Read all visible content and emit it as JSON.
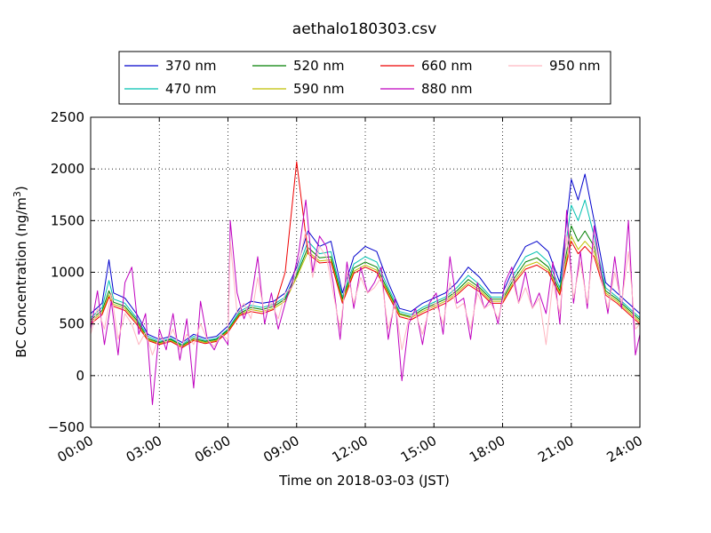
{
  "chart_data": {
    "type": "line",
    "title": "aethalo180303.csv",
    "xlabel": "Time on 2018-03-03 (JST)",
    "ylabel_main": "BC Concentration (ng/m",
    "ylabel_sup": "3",
    "ylabel_tail": ")",
    "x_ticks": [
      "00:00",
      "03:00",
      "06:00",
      "09:00",
      "12:00",
      "15:00",
      "18:00",
      "21:00",
      "24:00"
    ],
    "xlim_hours": [
      0,
      24
    ],
    "y_ticks": [
      "2500",
      "2000",
      "1500",
      "1000",
      "500",
      "0",
      "−500"
    ],
    "ylim": [
      -500,
      2500
    ],
    "grid": true,
    "legend_position": "top-center",
    "series": [
      {
        "name": "370 nm",
        "color": "#0000cc",
        "x": [
          0,
          0.5,
          0.8,
          1,
          1.5,
          2,
          2.5,
          3,
          3.5,
          4,
          4.5,
          5,
          5.5,
          6,
          6.5,
          7,
          7.5,
          8,
          8.5,
          9,
          9.5,
          10,
          10.5,
          11,
          11.5,
          12,
          12.5,
          13,
          13.5,
          14,
          14.5,
          15,
          15.5,
          16,
          16.5,
          17,
          17.5,
          18,
          18.5,
          19,
          19.5,
          20,
          20.5,
          21,
          21.3,
          21.6,
          22,
          22.5,
          23,
          23.5,
          24
        ],
        "y": [
          600,
          700,
          1120,
          800,
          750,
          600,
          400,
          350,
          380,
          320,
          400,
          360,
          380,
          480,
          650,
          720,
          700,
          720,
          800,
          1050,
          1400,
          1250,
          1300,
          800,
          1150,
          1250,
          1200,
          900,
          650,
          620,
          700,
          750,
          800,
          900,
          1050,
          950,
          800,
          800,
          1050,
          1250,
          1300,
          1200,
          900,
          1900,
          1700,
          1950,
          1500,
          900,
          800,
          700,
          600
        ]
      },
      {
        "name": "470 nm",
        "color": "#00c0b0",
        "x": [
          0,
          0.5,
          0.8,
          1,
          1.5,
          2,
          2.5,
          3,
          3.5,
          4,
          4.5,
          5,
          5.5,
          6,
          6.5,
          7,
          7.5,
          8,
          8.5,
          9,
          9.5,
          10,
          10.5,
          11,
          11.5,
          12,
          12.5,
          13,
          13.5,
          14,
          14.5,
          15,
          15.5,
          16,
          16.5,
          17,
          17.5,
          18,
          18.5,
          19,
          19.5,
          20,
          20.5,
          21,
          21.3,
          21.6,
          22,
          22.5,
          23,
          23.5,
          24
        ],
        "y": [
          560,
          660,
          920,
          740,
          700,
          560,
          380,
          330,
          360,
          300,
          380,
          340,
          360,
          450,
          620,
          680,
          660,
          690,
          760,
          1000,
          1300,
          1180,
          1200,
          760,
          1080,
          1150,
          1100,
          850,
          620,
          590,
          660,
          710,
          760,
          850,
          970,
          880,
          760,
          760,
          980,
          1150,
          1200,
          1100,
          850,
          1650,
          1500,
          1700,
          1350,
          850,
          760,
          660,
          560
        ]
      },
      {
        "name": "520 nm",
        "color": "#007f00",
        "x": [
          0,
          0.5,
          0.8,
          1,
          1.5,
          2,
          2.5,
          3,
          3.5,
          4,
          4.5,
          5,
          5.5,
          6,
          6.5,
          7,
          7.5,
          8,
          8.5,
          9,
          9.5,
          10,
          10.5,
          11,
          11.5,
          12,
          12.5,
          13,
          13.5,
          14,
          14.5,
          15,
          15.5,
          16,
          16.5,
          17,
          17.5,
          18,
          18.5,
          19,
          19.5,
          20,
          20.5,
          21,
          21.3,
          21.6,
          22,
          22.5,
          23,
          23.5,
          24
        ],
        "y": [
          540,
          630,
          820,
          710,
          670,
          540,
          360,
          320,
          350,
          290,
          360,
          330,
          350,
          440,
          600,
          660,
          640,
          670,
          740,
          970,
          1240,
          1140,
          1150,
          740,
          1040,
          1100,
          1050,
          820,
          600,
          570,
          640,
          690,
          740,
          820,
          930,
          850,
          740,
          740,
          940,
          1100,
          1140,
          1050,
          820,
          1450,
          1300,
          1400,
          1250,
          820,
          740,
          640,
          540
        ]
      },
      {
        "name": "590 nm",
        "color": "#bfbf00",
        "x": [
          0,
          0.5,
          0.8,
          1,
          1.5,
          2,
          2.5,
          3,
          3.5,
          4,
          4.5,
          5,
          5.5,
          6,
          6.5,
          7,
          7.5,
          8,
          8.5,
          9,
          9.5,
          10,
          10.5,
          11,
          11.5,
          12,
          12.5,
          13,
          13.5,
          14,
          14.5,
          15,
          15.5,
          16,
          16.5,
          17,
          17.5,
          18,
          18.5,
          19,
          19.5,
          20,
          20.5,
          21,
          21.3,
          21.6,
          22,
          22.5,
          23,
          23.5,
          24
        ],
        "y": [
          520,
          610,
          780,
          690,
          650,
          520,
          350,
          310,
          340,
          280,
          350,
          320,
          340,
          430,
          590,
          640,
          620,
          650,
          720,
          950,
          1200,
          1110,
          1120,
          720,
          1010,
          1070,
          1020,
          800,
          590,
          560,
          620,
          670,
          720,
          800,
          900,
          830,
          720,
          720,
          910,
          1060,
          1100,
          1020,
          800,
          1350,
          1220,
          1300,
          1200,
          800,
          720,
          620,
          520
        ]
      },
      {
        "name": "660 nm",
        "color": "#ee0000",
        "x": [
          0,
          0.5,
          0.8,
          1,
          1.5,
          2,
          2.5,
          3,
          3.5,
          4,
          4.5,
          5,
          5.5,
          6,
          6.5,
          7,
          7.5,
          8,
          8.5,
          9,
          9.5,
          10,
          10.5,
          11,
          11.5,
          12,
          12.5,
          13,
          13.5,
          14,
          14.5,
          15,
          15.5,
          16,
          16.5,
          17,
          17.5,
          18,
          18.5,
          19,
          19.5,
          20,
          20.5,
          21,
          21.3,
          21.6,
          22,
          22.5,
          23,
          23.5,
          24
        ],
        "y": [
          500,
          590,
          760,
          670,
          630,
          500,
          340,
          300,
          330,
          270,
          340,
          310,
          330,
          420,
          580,
          620,
          600,
          640,
          1000,
          2070,
          1180,
          1090,
          1100,
          700,
          990,
          1050,
          1000,
          780,
          570,
          540,
          600,
          650,
          700,
          780,
          880,
          810,
          700,
          700,
          890,
          1030,
          1070,
          1000,
          780,
          1300,
          1180,
          1250,
          1150,
          780,
          700,
          600,
          500
        ]
      },
      {
        "name": "880 nm",
        "color": "#bf00bf",
        "x": [
          0,
          0.3,
          0.6,
          0.9,
          1.2,
          1.5,
          1.8,
          2.1,
          2.4,
          2.7,
          3,
          3.3,
          3.6,
          3.9,
          4.2,
          4.5,
          4.8,
          5.1,
          5.4,
          5.7,
          6,
          6.1,
          6.4,
          6.7,
          7,
          7.3,
          7.6,
          7.9,
          8.2,
          8.5,
          8.8,
          9.1,
          9.4,
          9.7,
          10,
          10.3,
          10.6,
          10.9,
          11.2,
          11.5,
          11.8,
          12.1,
          12.4,
          12.7,
          13,
          13.3,
          13.6,
          13.9,
          14.2,
          14.5,
          14.8,
          15.1,
          15.4,
          15.7,
          16,
          16.3,
          16.6,
          16.9,
          17.2,
          17.5,
          17.8,
          18.1,
          18.4,
          18.7,
          19,
          19.3,
          19.6,
          19.9,
          20.2,
          20.5,
          20.8,
          21.1,
          21.4,
          21.7,
          22,
          22.3,
          22.6,
          22.9,
          23.2,
          23.5,
          23.8,
          24
        ],
        "y": [
          450,
          820,
          300,
          720,
          200,
          900,
          1050,
          400,
          600,
          -280,
          450,
          250,
          600,
          150,
          550,
          -120,
          720,
          350,
          250,
          400,
          300,
          1500,
          800,
          550,
          720,
          1150,
          500,
          800,
          450,
          700,
          900,
          1200,
          1700,
          1000,
          1350,
          1250,
          900,
          350,
          1100,
          650,
          1050,
          800,
          900,
          1050,
          350,
          750,
          -50,
          500,
          650,
          300,
          700,
          800,
          400,
          1150,
          700,
          750,
          350,
          900,
          650,
          750,
          500,
          900,
          1050,
          700,
          1000,
          650,
          800,
          600,
          1100,
          500,
          1600,
          700,
          1200,
          650,
          1450,
          1000,
          600,
          1150,
          650,
          1500,
          200,
          400
        ]
      },
      {
        "name": "950 nm",
        "color": "#ffb6c1",
        "x": [
          0,
          0.3,
          0.6,
          0.9,
          1.2,
          1.5,
          1.8,
          2.1,
          2.4,
          2.7,
          3,
          3.3,
          3.6,
          3.9,
          4.2,
          4.5,
          4.8,
          5.1,
          5.4,
          5.7,
          6,
          6.1,
          6.4,
          6.7,
          7,
          7.3,
          7.6,
          7.9,
          8.2,
          8.5,
          8.8,
          9.1,
          9.4,
          9.7,
          10,
          10.3,
          10.6,
          10.9,
          11.2,
          11.5,
          11.8,
          12.1,
          12.4,
          12.7,
          13,
          13.3,
          13.6,
          13.9,
          14.2,
          14.5,
          14.8,
          15.1,
          15.4,
          15.7,
          16,
          16.3,
          16.6,
          16.9,
          17.2,
          17.5,
          17.8,
          18.1,
          18.4,
          18.7,
          19,
          19.3,
          19.6,
          19.9,
          20.2,
          20.5,
          20.8,
          21.1,
          21.4,
          21.7,
          22,
          22.3,
          22.6,
          22.9,
          23.2,
          23.5,
          23.8,
          24
        ],
        "y": [
          400,
          650,
          450,
          800,
          350,
          600,
          500,
          300,
          420,
          200,
          380,
          320,
          450,
          250,
          400,
          300,
          500,
          350,
          280,
          400,
          350,
          1300,
          600,
          700,
          550,
          950,
          600,
          700,
          550,
          800,
          850,
          1100,
          1400,
          950,
          1250,
          1150,
          800,
          450,
          1000,
          700,
          950,
          800,
          850,
          950,
          450,
          700,
          250,
          550,
          600,
          400,
          650,
          700,
          500,
          900,
          650,
          700,
          450,
          800,
          650,
          700,
          550,
          800,
          950,
          700,
          850,
          650,
          750,
          300,
          900,
          600,
          1350,
          750,
          1100,
          700,
          1300,
          950,
          650,
          1000,
          700,
          1200,
          450,
          500
        ]
      }
    ]
  }
}
